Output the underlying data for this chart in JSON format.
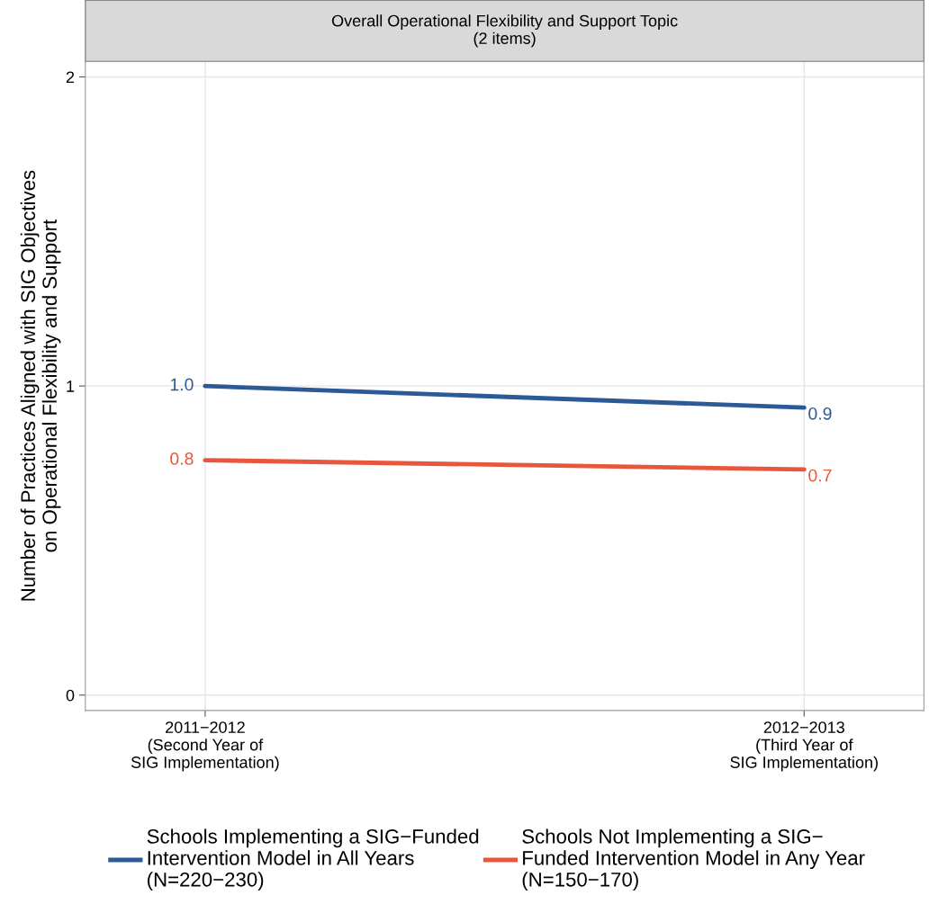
{
  "chart_data": {
    "type": "line",
    "title": "Overall Operational Flexibility and Support Topic\n(2 items)",
    "ylabel": "Number of Practices Aligned with SIG Objectives\non Operational Flexibility and Support",
    "categories": [
      "2011−2012\n(Second Year of\nSIG Implementation)",
      "2012−2013\n(Third Year of\nSIG Implementation)"
    ],
    "series": [
      {
        "name": "Schools Implementing a SIG−Funded\nIntervention Model in All Years\n(N=220−230)",
        "color": "#2b5a96",
        "values": [
          1.0,
          0.93
        ],
        "value_labels": [
          "1.0",
          "0.9"
        ]
      },
      {
        "name": "Schools Not Implementing a SIG−\nFunded Intervention Model in Any Year\n(N=150−170)",
        "color": "#e8573c",
        "values": [
          0.76,
          0.73
        ],
        "value_labels": [
          "0.8",
          "0.7"
        ]
      }
    ],
    "ylim": [
      -0.05,
      2.05
    ],
    "yticks": [
      0,
      1,
      2
    ],
    "grid": true,
    "legend": "bottom",
    "marker": "none",
    "line_style": "solid"
  }
}
